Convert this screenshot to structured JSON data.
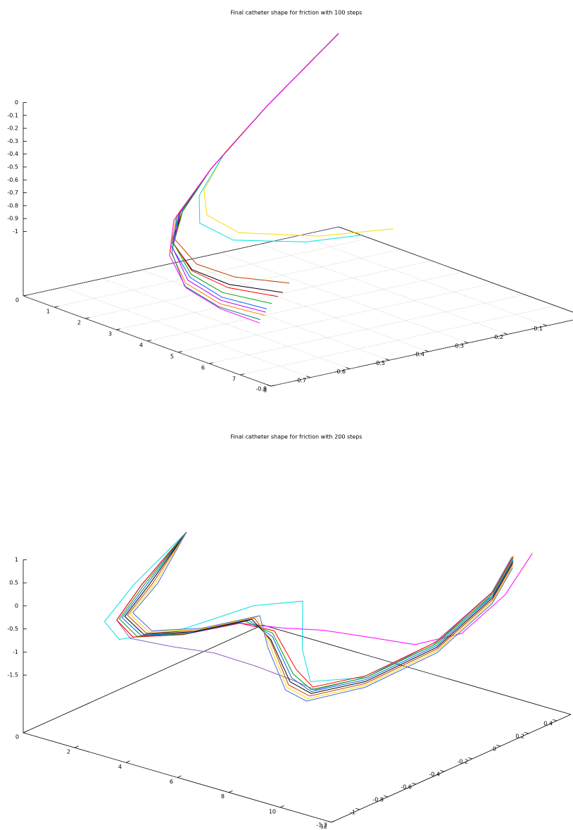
{
  "chart_data": [
    {
      "type": "line3d",
      "title": "Final catheter shape for friction with 100 steps",
      "xlim": [
        0,
        8
      ],
      "ylim": [
        -0.8,
        0
      ],
      "zlim": [
        -1.5,
        0
      ],
      "xticks": [
        0,
        1,
        2,
        3,
        4,
        5,
        6,
        7,
        8
      ],
      "yticks": [
        -0.8,
        -0.7,
        -0.6,
        -0.5,
        -0.4,
        -0.3,
        -0.2,
        -0.1
      ],
      "zticks": [
        0,
        -0.1,
        -0.2,
        -0.3,
        -0.4,
        -0.5,
        -0.6,
        -0.7,
        -0.8,
        -0.9,
        -1
      ],
      "grid": true,
      "series": [
        {
          "color": "#ffd700",
          "x": [
            0,
            1,
            1.95,
            2.4,
            2.75,
            3.4,
            4.2,
            4.7
          ],
          "y": [
            0,
            -0.26,
            -0.44,
            -0.53,
            -0.55,
            -0.52,
            -0.38,
            -0.23
          ],
          "z": [
            0,
            -0.3,
            -0.45,
            -0.65,
            -0.8,
            -0.9,
            -0.95,
            -0.95
          ]
        },
        {
          "color": "#00e0e0",
          "x": [
            0,
            1,
            2,
            2.5,
            2.9,
            3.6,
            4.3,
            4.6
          ],
          "y": [
            0,
            -0.26,
            -0.45,
            -0.55,
            -0.58,
            -0.55,
            -0.42,
            -0.3
          ],
          "z": [
            0,
            -0.3,
            -0.47,
            -0.67,
            -0.83,
            -0.92,
            -0.96,
            -0.96
          ]
        },
        {
          "color": "#c04000",
          "x": [
            0,
            1,
            2,
            2.55,
            3.1,
            4.2,
            5.3,
            6.3
          ],
          "y": [
            0,
            -0.26,
            -0.48,
            -0.6,
            -0.66,
            -0.69,
            -0.68,
            -0.62
          ],
          "z": [
            0,
            -0.3,
            -0.55,
            -0.75,
            -0.88,
            -0.96,
            -0.97,
            -0.97
          ]
        },
        {
          "color": "#000000",
          "x": [
            0,
            1,
            2,
            2.6,
            3.15,
            4.3,
            5.5,
            6.6
          ],
          "y": [
            0,
            -0.26,
            -0.48,
            -0.6,
            -0.67,
            -0.71,
            -0.71,
            -0.66
          ],
          "z": [
            0,
            -0.3,
            -0.55,
            -0.75,
            -0.89,
            -0.98,
            -0.99,
            -0.99
          ]
        },
        {
          "color": "#ff0000",
          "x": [
            0,
            1,
            2,
            2.6,
            3.2,
            4.3,
            5.6,
            6.7
          ],
          "y": [
            0,
            -0.26,
            -0.48,
            -0.6,
            -0.67,
            -0.71,
            -0.72,
            -0.68
          ],
          "z": [
            0,
            -0.3,
            -0.55,
            -0.75,
            -0.9,
            -0.99,
            -1,
            -1
          ]
        },
        {
          "color": "#00a000",
          "x": [
            0,
            1,
            2,
            2.6,
            3.2,
            4.4,
            5.8,
            7
          ],
          "y": [
            0,
            -0.26,
            -0.48,
            -0.6,
            -0.67,
            -0.72,
            -0.75,
            -0.72
          ],
          "z": [
            0,
            -0.3,
            -0.55,
            -0.75,
            -0.9,
            -1,
            -1,
            -1
          ]
        },
        {
          "color": "#0060ff",
          "x": [
            0,
            1,
            2,
            2.62,
            3.25,
            4.5,
            5.9,
            7.1
          ],
          "y": [
            0,
            -0.26,
            -0.48,
            -0.61,
            -0.68,
            -0.73,
            -0.76,
            -0.74
          ],
          "z": [
            0,
            -0.3,
            -0.55,
            -0.76,
            -0.91,
            -1.01,
            -1.02,
            -1.02
          ]
        },
        {
          "color": "#c000ff",
          "x": [
            0,
            1,
            2,
            2.63,
            3.3,
            4.55,
            6,
            7.2
          ],
          "y": [
            0,
            -0.26,
            -0.48,
            -0.61,
            -0.68,
            -0.74,
            -0.77,
            -0.75
          ],
          "z": [
            0,
            -0.3,
            -0.55,
            -0.76,
            -0.92,
            -1.02,
            -1.03,
            -1.03
          ]
        },
        {
          "color": "#ff8000",
          "x": [
            0,
            1,
            2,
            2.65,
            3.35,
            4.6,
            6.1,
            7.3
          ],
          "y": [
            0,
            -0.26,
            -0.48,
            -0.62,
            -0.69,
            -0.75,
            -0.78,
            -0.76
          ],
          "z": [
            0,
            -0.3,
            -0.55,
            -0.77,
            -0.93,
            -1.03,
            -1.04,
            -1.04
          ]
        },
        {
          "color": "#008080",
          "x": [
            0,
            1,
            2,
            2.67,
            3.4,
            4.7,
            6.2,
            7.4
          ],
          "y": [
            0,
            -0.26,
            -0.48,
            -0.62,
            -0.69,
            -0.76,
            -0.79,
            -0.78
          ],
          "z": [
            0,
            -0.3,
            -0.55,
            -0.78,
            -0.94,
            -1.04,
            -1.05,
            -1.05
          ]
        },
        {
          "color": "#ff00ff",
          "x": [
            0,
            1,
            2,
            2.7,
            3.45,
            4.75,
            6.25,
            7.5
          ],
          "y": [
            0,
            -0.26,
            -0.48,
            -0.63,
            -0.7,
            -0.76,
            -0.79,
            -0.79
          ],
          "z": [
            0,
            -0.3,
            -0.55,
            -0.79,
            -0.95,
            -1.05,
            -1.06,
            -1.06
          ]
        }
      ]
    },
    {
      "type": "line3d",
      "title": "Final catheter shape for friction with 200 steps",
      "xlim": [
        0,
        12
      ],
      "ylim": [
        -1.2,
        0.5
      ],
      "zlim": [
        -2.75,
        1
      ],
      "xticks": [
        0,
        2,
        4,
        6,
        8,
        10,
        12
      ],
      "yticks": [
        -1.2,
        -1,
        -0.8,
        -0.6,
        -0.4,
        -0.2,
        0,
        0.2,
        0.4
      ],
      "zticks": [
        1,
        0.5,
        0,
        -0.5,
        -1,
        -1.5
      ],
      "grid": false,
      "series": [
        {
          "color": "#00e0e0",
          "x": [
            2.9,
            1.5,
            1.3,
            2.1,
            3.5,
            4.6,
            5.4,
            6.2,
            6.9,
            7.9,
            9,
            9.9,
            10.2
          ],
          "y": [
            -0.57,
            -0.69,
            -0.86,
            -0.9,
            -0.75,
            -0.4,
            -0.2,
            -0.35,
            -0.42,
            -0.24,
            0.06,
            0.3,
            0.4
          ],
          "z": [
            1.2,
            0,
            -0.6,
            -0.8,
            -0.6,
            -0.35,
            -0.4,
            -1.1,
            -1.6,
            -1.6,
            -1.15,
            -0.3,
            0.45
          ]
        },
        {
          "color": "#ff00ff",
          "x": [
            2.9,
            1.7,
            1.5,
            2.3,
            3.6,
            4.7,
            5.6,
            6.2,
            7.2,
            8.4,
            9.4,
            10.1,
            10.5
          ],
          "y": [
            -0.57,
            -0.67,
            -0.81,
            -0.84,
            -0.72,
            -0.52,
            -0.38,
            -0.2,
            -0.05,
            0.05,
            0.2,
            0.38,
            0.5
          ],
          "z": [
            1.2,
            0,
            -0.6,
            -0.8,
            -0.7,
            -0.55,
            -0.7,
            -0.9,
            -1.1,
            -1.2,
            -1,
            -0.3,
            0.5
          ]
        },
        {
          "color": "#9060c0",
          "x": [
            2.9,
            1.7,
            1.5,
            2.3,
            3.6,
            4.7,
            5.8,
            6.7,
            7.2,
            8,
            9,
            9.9,
            10.2
          ],
          "y": [
            -0.57,
            -0.67,
            -0.81,
            -0.86,
            -0.8,
            -0.7,
            -0.6,
            -0.5,
            -0.44,
            -0.22,
            0.08,
            0.32,
            0.41
          ],
          "z": [
            1.2,
            0,
            -0.6,
            -0.8,
            -0.85,
            -0.95,
            -1.2,
            -1.5,
            -1.7,
            -1.6,
            -1.1,
            -0.2,
            0.5
          ]
        },
        {
          "color": "#ff0000",
          "x": [
            2.9,
            1.7,
            1.5,
            2.3,
            3.6,
            4.7,
            5.55,
            6.4,
            7,
            7.9,
            9,
            9.9,
            10.2
          ],
          "y": [
            -0.57,
            -0.67,
            -0.81,
            -0.84,
            -0.72,
            -0.52,
            -0.43,
            -0.43,
            -0.42,
            -0.21,
            0.1,
            0.33,
            0.42
          ],
          "z": [
            1.2,
            0,
            -0.6,
            -0.8,
            -0.7,
            -0.55,
            -0.7,
            -1.4,
            -1.7,
            -1.6,
            -1.1,
            -0.2,
            0.5
          ]
        },
        {
          "color": "#00a000",
          "x": [
            2.9,
            1.75,
            1.55,
            2.4,
            3.7,
            4.8,
            5.6,
            6.45,
            7.05,
            7.95,
            9.05,
            9.95,
            10.25
          ],
          "y": [
            -0.57,
            -0.66,
            -0.8,
            -0.83,
            -0.71,
            -0.5,
            -0.45,
            -0.46,
            -0.44,
            -0.22,
            0.09,
            0.32,
            0.41
          ],
          "z": [
            1.2,
            0,
            -0.58,
            -0.78,
            -0.68,
            -0.52,
            -0.72,
            -1.45,
            -1.72,
            -1.62,
            -1.12,
            -0.22,
            0.48
          ]
        },
        {
          "color": "#0060ff",
          "x": [
            2.9,
            1.8,
            1.6,
            2.5,
            3.8,
            4.9,
            5.7,
            6.5,
            7.1,
            8,
            9.1,
            10,
            10.3
          ],
          "y": [
            -0.57,
            -0.65,
            -0.79,
            -0.82,
            -0.7,
            -0.49,
            -0.47,
            -0.48,
            -0.45,
            -0.23,
            0.08,
            0.31,
            0.4
          ],
          "z": [
            1.2,
            0,
            -0.56,
            -0.76,
            -0.66,
            -0.5,
            -0.75,
            -1.5,
            -1.74,
            -1.64,
            -1.14,
            -0.24,
            0.46
          ]
        },
        {
          "color": "#000000",
          "x": [
            2.9,
            1.85,
            1.65,
            2.55,
            3.85,
            4.95,
            5.75,
            6.55,
            7.15,
            8.05,
            9.15,
            10.05,
            10.35
          ],
          "y": [
            -0.57,
            -0.64,
            -0.78,
            -0.81,
            -0.69,
            -0.48,
            -0.49,
            -0.5,
            -0.46,
            -0.24,
            0.07,
            0.3,
            0.39
          ],
          "z": [
            1.2,
            0,
            -0.54,
            -0.74,
            -0.64,
            -0.48,
            -0.78,
            -1.55,
            -1.76,
            -1.66,
            -1.16,
            -0.26,
            0.44
          ]
        },
        {
          "color": "#c04000",
          "x": [
            2.9,
            1.9,
            1.7,
            2.6,
            3.9,
            5,
            5.8,
            6.6,
            7.2,
            8.1,
            9.2,
            10.1,
            10.4
          ],
          "y": [
            -0.57,
            -0.63,
            -0.77,
            -0.8,
            -0.68,
            -0.47,
            -0.5,
            -0.52,
            -0.48,
            -0.25,
            0.06,
            0.29,
            0.38
          ],
          "z": [
            1.2,
            0,
            -0.52,
            -0.72,
            -0.62,
            -0.46,
            -0.8,
            -1.58,
            -1.78,
            -1.68,
            -1.18,
            -0.28,
            0.42
          ]
        },
        {
          "color": "#ffd700",
          "x": [
            2.9,
            1.95,
            1.75,
            2.65,
            3.95,
            5.05,
            5.85,
            6.65,
            7.25,
            8.15,
            9.25,
            10.15,
            10.45
          ],
          "y": [
            -0.57,
            -0.62,
            -0.76,
            -0.79,
            -0.67,
            -0.46,
            -0.52,
            -0.54,
            -0.5,
            -0.26,
            0.05,
            0.28,
            0.37
          ],
          "z": [
            1.2,
            0,
            -0.5,
            -0.7,
            -0.6,
            -0.44,
            -0.82,
            -1.6,
            -1.8,
            -1.7,
            -1.2,
            -0.3,
            0.4
          ]
        },
        {
          "color": "#4169e1",
          "x": [
            2.9,
            2,
            1.8,
            2.7,
            4,
            5.1,
            5.9,
            6.7,
            7.3,
            8.2,
            9.3,
            10.2,
            10.5
          ],
          "y": [
            -0.57,
            -0.61,
            -0.75,
            -0.78,
            -0.66,
            -0.45,
            -0.54,
            -0.56,
            -0.52,
            -0.27,
            0.04,
            0.27,
            0.36
          ],
          "z": [
            1.2,
            0,
            -0.48,
            -0.68,
            -0.58,
            -0.42,
            -0.85,
            -1.62,
            -1.82,
            -1.72,
            -1.22,
            -0.32,
            0.38
          ]
        }
      ]
    }
  ]
}
